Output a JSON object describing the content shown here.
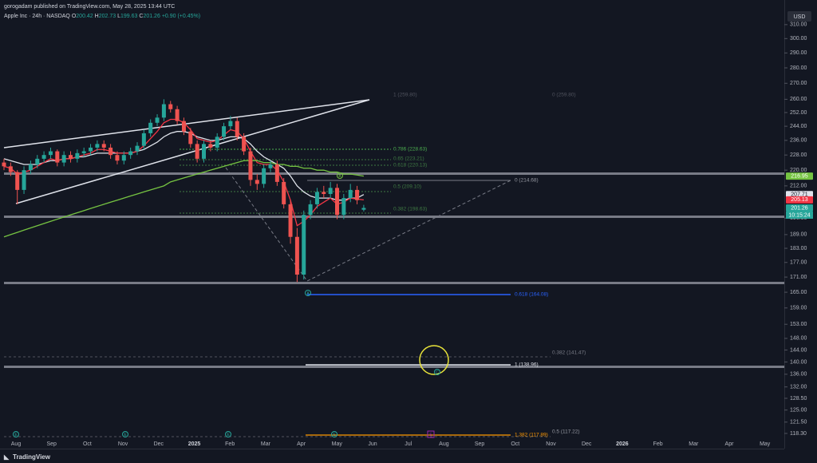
{
  "header": {
    "publisher": "gorogadam published on TradingView.com, May 28, 2025 13:44 UTC",
    "logo": "TradingView"
  },
  "chart_data": {
    "type": "candlestick",
    "title": "Apple Inc · 24h · NASDAQ",
    "ohlc_letters": [
      "O",
      "H",
      "L",
      "C"
    ],
    "change_label": "+0.90 (+0.45%)",
    "currency": "USD",
    "log_scale": true,
    "ylim": [
      116.3,
      320
    ],
    "yticks": [
      {
        "value": 310,
        "label": "310.00"
      },
      {
        "value": 300,
        "label": "300.00"
      },
      {
        "value": 290,
        "label": "290.00"
      },
      {
        "value": 280,
        "label": "280.00"
      },
      {
        "value": 270,
        "label": "270.00"
      },
      {
        "value": 260,
        "label": "260.00"
      },
      {
        "value": 252,
        "label": "252.00"
      },
      {
        "value": 244,
        "label": "244.00"
      },
      {
        "value": 236,
        "label": "236.00"
      },
      {
        "value": 228,
        "label": "228.00"
      },
      {
        "value": 220,
        "label": "220.00"
      },
      {
        "value": 212,
        "label": "212.00"
      },
      {
        "value": 196.5,
        "label": "196.50"
      },
      {
        "value": 189,
        "label": "189.00"
      },
      {
        "value": 183,
        "label": "183.00"
      },
      {
        "value": 177,
        "label": "177.00"
      },
      {
        "value": 171,
        "label": "171.00"
      },
      {
        "value": 165,
        "label": "165.00"
      },
      {
        "value": 159,
        "label": "159.00"
      },
      {
        "value": 153,
        "label": "153.00"
      },
      {
        "value": 148,
        "label": "148.00"
      },
      {
        "value": 144,
        "label": "144.00"
      },
      {
        "value": 140,
        "label": "140.00"
      },
      {
        "value": 136,
        "label": "136.00"
      },
      {
        "value": 132,
        "label": "132.00"
      },
      {
        "value": 128.5,
        "label": "128.50"
      },
      {
        "value": 125,
        "label": "125.00"
      },
      {
        "value": 121.5,
        "label": "121.50"
      },
      {
        "value": 118.3,
        "label": "118.30"
      }
    ],
    "x_labels": [
      "Aug",
      "Sep",
      "Oct",
      "Nov",
      "Dec",
      "2025",
      "Feb",
      "Mar",
      "Apr",
      "May",
      "Jun",
      "Jul",
      "Aug",
      "Sep",
      "Oct",
      "Nov",
      "Dec",
      "2026",
      "Feb",
      "Mar",
      "Apr",
      "May"
    ],
    "up_color": "#26a69a",
    "down_color": "#ef5350",
    "open": [
      224,
      222,
      219,
      210,
      220,
      223,
      226,
      228,
      230,
      224,
      228,
      226,
      229,
      230,
      232,
      234,
      232,
      228,
      225,
      228,
      230,
      233,
      240,
      246,
      249,
      257,
      254,
      247,
      241,
      234,
      226,
      234,
      232,
      238,
      244,
      247,
      238,
      230,
      215,
      213,
      221,
      223,
      214,
      203,
      188,
      172,
      198,
      203,
      209,
      208,
      211,
      198,
      206,
      210,
      200.42
    ],
    "high": [
      226,
      224,
      220,
      222,
      225,
      228,
      230,
      232,
      231,
      230,
      230,
      231,
      232,
      234,
      236,
      236,
      234,
      230,
      230,
      232,
      235,
      242,
      248,
      251,
      260,
      259,
      256,
      249,
      243,
      236,
      236,
      236,
      240,
      246,
      250,
      249,
      240,
      232,
      218,
      223,
      225,
      225,
      216,
      205,
      192,
      200,
      205,
      211,
      212,
      214,
      213,
      208,
      213,
      212,
      202.73
    ],
    "low": [
      220,
      217,
      203,
      208,
      218,
      221,
      224,
      226,
      222,
      222,
      224,
      224,
      227,
      228,
      230,
      230,
      226,
      223,
      223,
      226,
      228,
      231,
      238,
      244,
      247,
      252,
      245,
      239,
      232,
      224,
      224,
      230,
      230,
      236,
      242,
      236,
      228,
      212,
      210,
      211,
      219,
      212,
      201,
      185,
      169,
      170,
      196,
      201,
      206,
      206,
      196,
      196,
      204,
      203,
      199.63
    ],
    "close": [
      222,
      219,
      210,
      220,
      223,
      226,
      228,
      230,
      224,
      228,
      226,
      229,
      230,
      232,
      234,
      232,
      228,
      225,
      228,
      230,
      233,
      240,
      246,
      249,
      257,
      254,
      247,
      241,
      234,
      226,
      234,
      232,
      238,
      244,
      247,
      238,
      230,
      215,
      213,
      221,
      223,
      214,
      203,
      188,
      172,
      198,
      203,
      209,
      208,
      211,
      198,
      206,
      210,
      205,
      201.26
    ],
    "series": [
      {
        "color": "#e0e3eb",
        "values": [
          226,
          225,
          224,
          223,
          223,
          223,
          224,
          225,
          225,
          226,
          226,
          227,
          227,
          228,
          229,
          229,
          229,
          229,
          229,
          229,
          230,
          231,
          233,
          235,
          238,
          240,
          241,
          241,
          240,
          238,
          237,
          236,
          236,
          237,
          238,
          238,
          237,
          234,
          230,
          227,
          225,
          223,
          221,
          217,
          212,
          209,
          207,
          206,
          206,
          206,
          205,
          205,
          206,
          206,
          207.71
        ]
      },
      {
        "color": "#f23645",
        "values": [
          222,
          221,
          218,
          219,
          220,
          222,
          224,
          226,
          225,
          226,
          226,
          227,
          228,
          229,
          231,
          231,
          230,
          229,
          229,
          229,
          230,
          233,
          237,
          241,
          246,
          248,
          248,
          246,
          242,
          237,
          236,
          235,
          236,
          239,
          242,
          241,
          237,
          230,
          224,
          223,
          223,
          220,
          214,
          205,
          193,
          195,
          198,
          202,
          204,
          206,
          203,
          204,
          206,
          205.5,
          205.13
        ]
      },
      {
        "color": "#76c442",
        "values": [
          188,
          189,
          190,
          191,
          192,
          193,
          194,
          195,
          196,
          197,
          198,
          199,
          200,
          201,
          202,
          203,
          204,
          205,
          206,
          207,
          208,
          209,
          210,
          211,
          212,
          214,
          215,
          216,
          217,
          218,
          219,
          220,
          221,
          222,
          223,
          224,
          225,
          225,
          225,
          224,
          224,
          223,
          223,
          222,
          222,
          221,
          221,
          220,
          220,
          219,
          219,
          218,
          218,
          217.5,
          216.95
        ]
      }
    ],
    "price_tags": [
      {
        "value": 216.95,
        "label": "216.95",
        "color": "#76c442"
      },
      {
        "value": 207.71,
        "label": "207.71",
        "color": "#e0e3eb"
      },
      {
        "value": 205.13,
        "label": "205.13",
        "color": "#f23645"
      },
      {
        "value": 201.26,
        "label": "201.26",
        "color": "#26a69a"
      }
    ],
    "countdown": "10:15:24",
    "annotations": [
      {
        "text": "1 (259.80)",
        "color": "#50535e"
      },
      {
        "text": "0 (259.80)",
        "color": "#50535e"
      },
      {
        "text": "0.786 (228.63)",
        "color": "#4caf50"
      },
      {
        "text": "0.65 (223.21)",
        "color": "#3f7a43"
      },
      {
        "text": "0.618 (220.13)",
        "color": "#3f7a43"
      },
      {
        "text": "0.5 (209.10)",
        "color": "#3f7a43"
      },
      {
        "text": "0.382 (198.63)",
        "color": "#3f7a43"
      },
      {
        "text": "0 (214.68)",
        "color": "#9598a1"
      },
      {
        "text": "0.618 (164.08)",
        "color": "#2962ff"
      },
      {
        "text": "0.382 (141.47)",
        "color": "#787b86"
      },
      {
        "text": "1 (138.96)",
        "color": "#e0e3eb"
      },
      {
        "text": "0.5 (117.22)",
        "color": "#9598a1"
      },
      {
        "text": "1.382 (117.89)",
        "color": "#ff9800"
      }
    ],
    "markers": [
      {
        "label": "E"
      },
      {
        "label": "E"
      },
      {
        "label": "E"
      },
      {
        "label": "E"
      },
      {
        "label": "E"
      },
      {
        "label": "A"
      },
      {
        "label": "B"
      },
      {
        "label": "C"
      }
    ]
  }
}
